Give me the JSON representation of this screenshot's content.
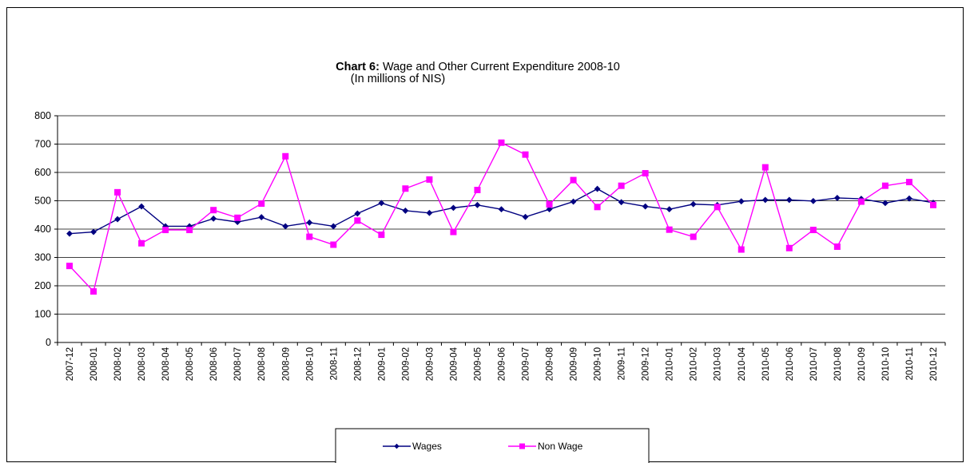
{
  "chart_data": {
    "type": "line",
    "title_bold": "Chart 6:",
    "title_rest": " Wage and Other Current Expenditure 2008-10",
    "subtitle": "(In millions of NIS)",
    "xlabel": "",
    "ylabel": "",
    "ylim": [
      0,
      800
    ],
    "yticks": [
      "0",
      "100",
      "200",
      "300",
      "400",
      "500",
      "600",
      "700",
      "800"
    ],
    "grid": "horizontal",
    "legend": "bottom-center",
    "categories": [
      "2007-12",
      "2008-01",
      "2008-02",
      "2008-03",
      "2008-04",
      "2008-05",
      "2008-06",
      "2008-07",
      "2008-08",
      "2008-09",
      "2008-10",
      "2008-11",
      "2008-12",
      "2009-01",
      "2009-02",
      "2009-03",
      "2009-04",
      "2009-05",
      "2009-06",
      "2009-07",
      "2009-08",
      "2009-09",
      "2009-10",
      "2009-11",
      "2009-12",
      "2010-01",
      "2010-02",
      "2010-03",
      "2010-04",
      "2010-05",
      "2010-06",
      "2010-07",
      "2010-08",
      "2010-09",
      "2010-10",
      "2010-11",
      "2010-12"
    ],
    "series": [
      {
        "name": "Wages",
        "color": "#000080",
        "marker": "diamond",
        "values": [
          384,
          390,
          435,
          480,
          410,
          410,
          437,
          425,
          442,
          410,
          423,
          410,
          455,
          492,
          465,
          457,
          475,
          485,
          470,
          443,
          470,
          497,
          542,
          495,
          480,
          470,
          488,
          485,
          498,
          503,
          503,
          499,
          510,
          507,
          492,
          508,
          493
        ]
      },
      {
        "name": "Non Wage",
        "color": "#ff00ff",
        "marker": "square",
        "values": [
          270,
          180,
          530,
          350,
          397,
          397,
          467,
          440,
          490,
          657,
          373,
          345,
          430,
          380,
          543,
          575,
          390,
          538,
          705,
          663,
          487,
          573,
          478,
          553,
          597,
          398,
          373,
          478,
          328,
          618,
          333,
          397,
          338,
          497,
          553,
          566,
          485
        ]
      }
    ]
  }
}
